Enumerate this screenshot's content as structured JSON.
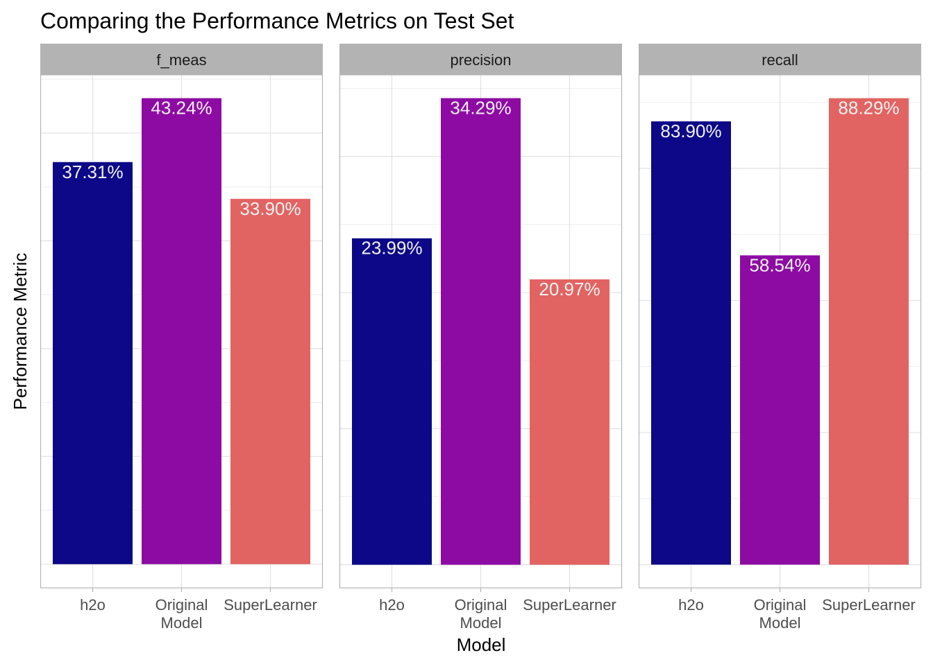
{
  "chart_data": {
    "type": "bar",
    "title": "Comparing the Performance Metrics on Test Set",
    "xlabel": "Model",
    "ylabel": "Performance Metric",
    "facet_by": "metric",
    "categories": [
      [
        "h2o"
      ],
      [
        "Original",
        "Model"
      ],
      [
        "SuperLearner"
      ]
    ],
    "category_colors": [
      "#0d0887",
      "#8d0ba3",
      "#e16462"
    ],
    "axis_colors": {
      "strip_bg": "#b3b3b3",
      "panel_border": "#b3b3b3",
      "grid_major": "#e0e0e0",
      "grid_minor": "#eeeeee",
      "label_text": "#f2f2f2"
    },
    "grid": true,
    "legend": "none",
    "y_tick_labels_shown": false,
    "scales": "free_y",
    "facets": [
      {
        "name": "f_meas",
        "values": [
          37.31,
          43.24,
          33.9
        ],
        "labels": [
          "37.31%",
          "43.24%",
          "33.90%"
        ],
        "ylim": [
          -2.2,
          45.4
        ],
        "ygrid_major": [
          0,
          10,
          20,
          30,
          40
        ],
        "ygrid_minor": [
          5,
          15,
          25,
          35,
          45
        ]
      },
      {
        "name": "precision",
        "values": [
          23.99,
          34.29,
          20.97
        ],
        "labels": [
          "23.99%",
          "34.29%",
          "20.97%"
        ],
        "ylim": [
          -1.7,
          36.0
        ],
        "ygrid_major": [
          0,
          10,
          20,
          30
        ],
        "ygrid_minor": [
          5,
          15,
          25,
          35
        ]
      },
      {
        "name": "recall",
        "values": [
          83.9,
          58.54,
          88.29
        ],
        "labels": [
          "83.90%",
          "58.54%",
          "88.29%"
        ],
        "ylim": [
          -4.4,
          92.7
        ],
        "ygrid_major": [
          0,
          25,
          50,
          75
        ],
        "ygrid_minor": [
          12.5,
          37.5,
          62.5,
          87.5
        ]
      }
    ]
  }
}
